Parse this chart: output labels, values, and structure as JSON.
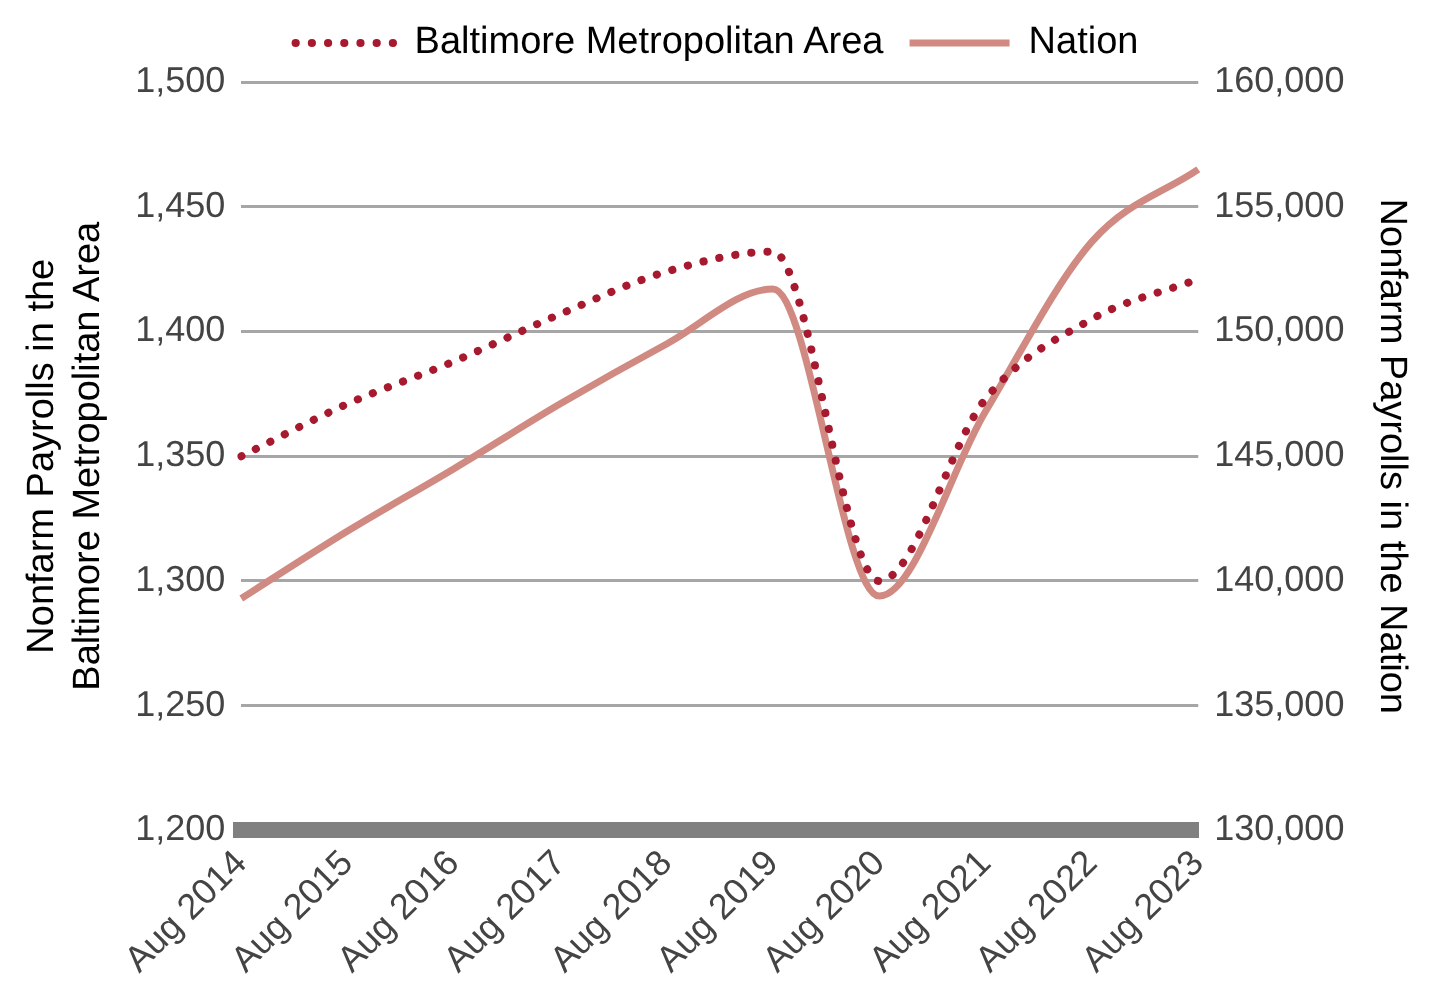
{
  "chart_data": {
    "type": "line",
    "ylabel": "Nonfarm Payrolls in the\nBaltimore Metropolitan Area",
    "y2label": "Nonfarm Payrolls in the Nation",
    "categories": [
      "Aug 2014",
      "Aug 2015",
      "Aug 2016",
      "Aug 2017",
      "Aug 2018",
      "Aug 2019",
      "Aug 2020",
      "Aug 2021",
      "Aug 2022",
      "Aug 2023"
    ],
    "series": [
      {
        "name": "Baltimore Metropolitan Area",
        "color": "#a6192e",
        "line_style": "dotted",
        "values": [
          1350,
          1371,
          1388,
          1407,
          1424,
          1432,
          1300,
          1373,
          1405,
          1421
        ]
      },
      {
        "name": "Nation",
        "color": "#d08a82",
        "line_style": "solid",
        "axis": "y2",
        "values": [
          139300,
          142000,
          144500,
          147100,
          149500,
          151700,
          139400,
          146800,
          153600,
          156500
        ]
      }
    ],
    "ylim": [
      1200,
      1500
    ],
    "yticks": [
      {
        "value": 1200,
        "label": "1,200"
      },
      {
        "value": 1250,
        "label": "1,250"
      },
      {
        "value": 1300,
        "label": "1,300"
      },
      {
        "value": 1350,
        "label": "1,350"
      },
      {
        "value": 1400,
        "label": "1,400"
      },
      {
        "value": 1450,
        "label": "1,450"
      },
      {
        "value": 1500,
        "label": "1,500"
      }
    ],
    "y2lim": [
      130000,
      160000
    ],
    "y2ticks": [
      {
        "value": 130000,
        "label": "130,000"
      },
      {
        "value": 135000,
        "label": "135,000"
      },
      {
        "value": 140000,
        "label": "140,000"
      },
      {
        "value": 145000,
        "label": "145,000"
      },
      {
        "value": 150000,
        "label": "150,000"
      },
      {
        "value": 155000,
        "label": "155,000"
      },
      {
        "value": 160000,
        "label": "160,000"
      }
    ],
    "grid": "y",
    "legend": "top",
    "marker": "none"
  }
}
